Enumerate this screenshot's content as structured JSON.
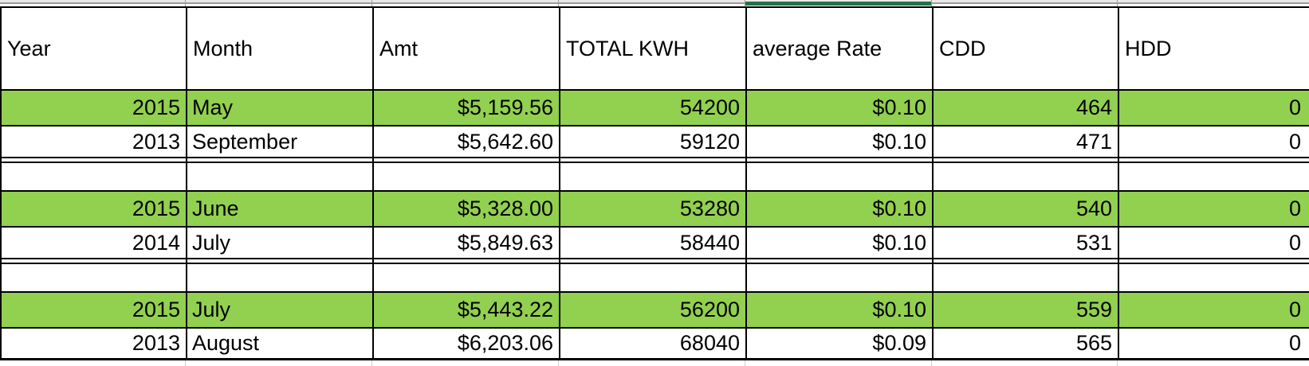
{
  "table": {
    "columns": [
      {
        "key": "year",
        "label": "Year"
      },
      {
        "key": "month",
        "label": "Month"
      },
      {
        "key": "amt",
        "label": "Amt"
      },
      {
        "key": "total_kwh",
        "label": "TOTAL KWH"
      },
      {
        "key": "average_rate",
        "label": "average Rate"
      },
      {
        "key": "cdd",
        "label": "CDD"
      },
      {
        "key": "hdd",
        "label": "HDD"
      }
    ],
    "selection_marker": {
      "column_key": "average_rate",
      "color": "#217346"
    },
    "colors": {
      "highlight_green": "#92d050",
      "border_black": "#000000",
      "gridline_gray": "#9b9b9b"
    },
    "rows": [
      {
        "type": "data",
        "highlight": true,
        "cells": {
          "year": "2015",
          "month": "May",
          "amt": "$5,159.56",
          "total_kwh": "54200",
          "average_rate": "$0.10",
          "cdd": "464",
          "hdd": "0"
        }
      },
      {
        "type": "data",
        "highlight": false,
        "cells": {
          "year": "2013",
          "month": "September",
          "amt": "$5,642.60",
          "total_kwh": "59120",
          "average_rate": "$0.10",
          "cdd": "471",
          "hdd": "0"
        }
      },
      {
        "type": "gap"
      },
      {
        "type": "empty"
      },
      {
        "type": "data",
        "highlight": true,
        "cells": {
          "year": "2015",
          "month": "June",
          "amt": "$5,328.00",
          "total_kwh": "53280",
          "average_rate": "$0.10",
          "cdd": "540",
          "hdd": "0"
        }
      },
      {
        "type": "data",
        "highlight": false,
        "cells": {
          "year": "2014",
          "month": "July",
          "amt": "$5,849.63",
          "total_kwh": "58440",
          "average_rate": "$0.10",
          "cdd": "531",
          "hdd": "0"
        }
      },
      {
        "type": "gap"
      },
      {
        "type": "empty"
      },
      {
        "type": "data",
        "highlight": true,
        "cells": {
          "year": "2015",
          "month": "July",
          "amt": "$5,443.22",
          "total_kwh": "56200",
          "average_rate": "$0.10",
          "cdd": "559",
          "hdd": "0"
        }
      },
      {
        "type": "data",
        "highlight": false,
        "cells": {
          "year": "2013",
          "month": "August",
          "amt": "$6,203.06",
          "total_kwh": "68040",
          "average_rate": "$0.09",
          "cdd": "565",
          "hdd": "0"
        }
      }
    ]
  }
}
